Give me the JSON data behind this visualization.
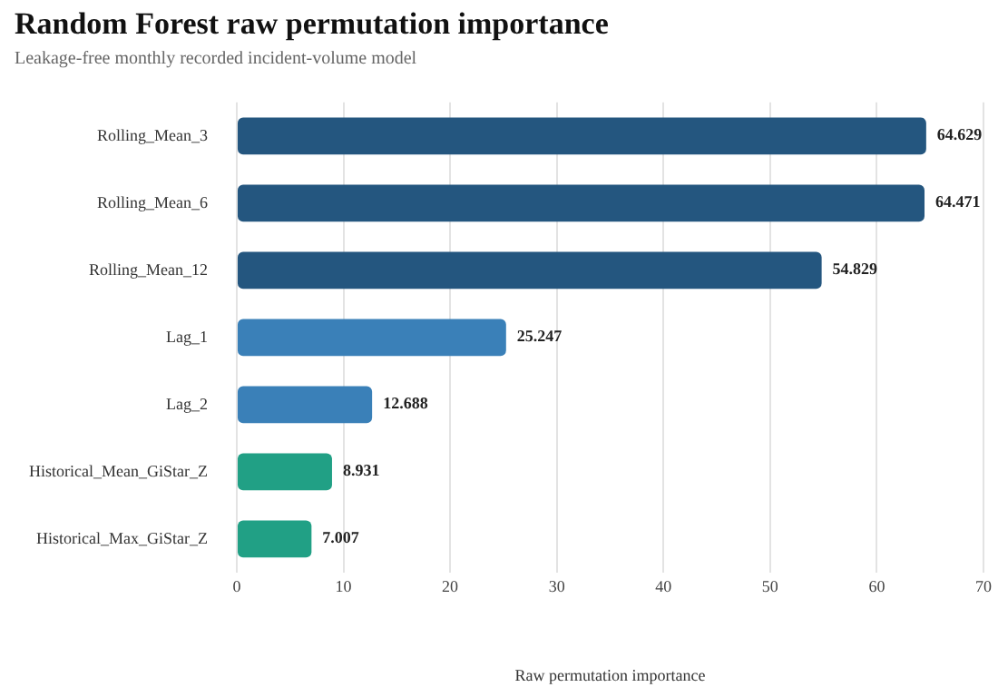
{
  "chart_data": {
    "type": "bar",
    "orientation": "horizontal",
    "title": "Random Forest raw permutation importance",
    "subtitle": "Leakage-free monthly recorded incident-volume model",
    "xlabel": "Raw permutation importance",
    "categories": [
      "Rolling_Mean_3",
      "Rolling_Mean_6",
      "Rolling_Mean_12",
      "Lag_1",
      "Lag_2",
      "Historical_Mean_GiStar_Z",
      "Historical_Max_GiStar_Z"
    ],
    "values": [
      64.629,
      64.471,
      54.829,
      25.247,
      12.688,
      8.931,
      7.007
    ],
    "colors": [
      "#24567f",
      "#24567f",
      "#24567f",
      "#3a80b8",
      "#3a80b8",
      "#21a085",
      "#21a085"
    ],
    "xlim": [
      0,
      70
    ],
    "xticks": [
      0,
      10,
      20,
      30,
      40,
      50,
      60,
      70
    ],
    "grid": "x",
    "data_labels": true,
    "legend": false
  }
}
